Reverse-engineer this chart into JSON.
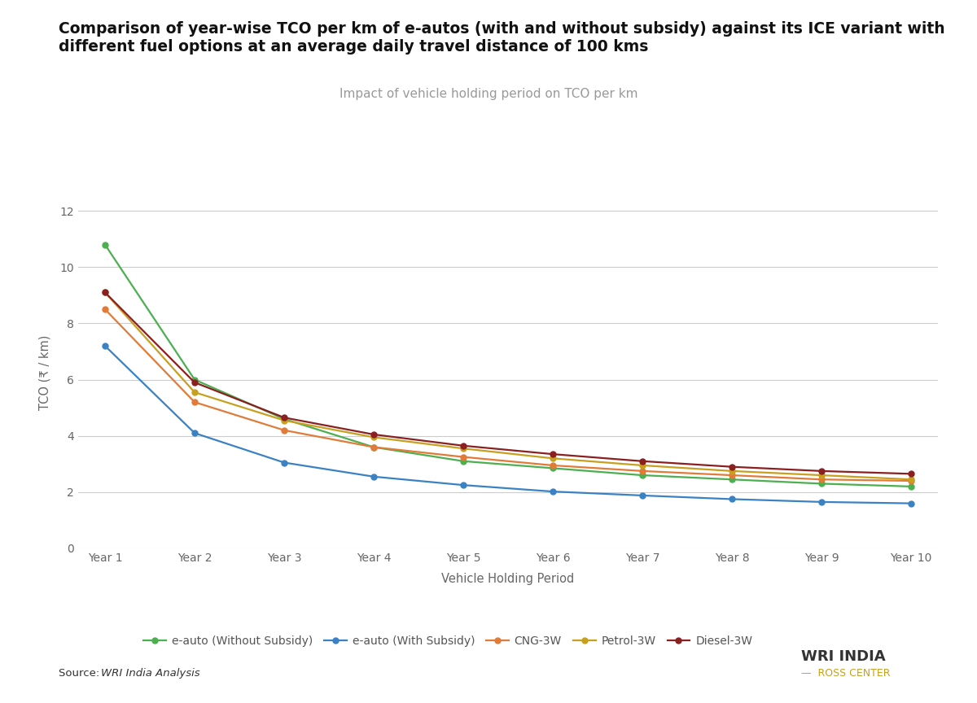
{
  "title_line1": "Comparison of year-wise TCO per km of e-autos (with and without subsidy) against its ICE variant with",
  "title_line2": "different fuel options at an average daily travel distance of 100 kms",
  "subtitle": "Impact of vehicle holding period on TCO per km",
  "xlabel": "Vehicle Holding Period",
  "ylabel": "TCO (₹ / km)",
  "categories": [
    "Year 1",
    "Year 2",
    "Year 3",
    "Year 4",
    "Year 5",
    "Year 6",
    "Year 7",
    "Year 8",
    "Year 9",
    "Year 10"
  ],
  "series_order": [
    "e-auto (Without Subsidy)",
    "e-auto (With Subsidy)",
    "CNG-3W",
    "Petrol-3W",
    "Diesel-3W"
  ],
  "series": {
    "e-auto (Without Subsidy)": {
      "values": [
        10.8,
        6.0,
        4.6,
        3.6,
        3.1,
        2.85,
        2.6,
        2.45,
        2.3,
        2.2
      ],
      "color": "#4CAF50",
      "marker": "o"
    },
    "e-auto (With Subsidy)": {
      "values": [
        7.2,
        4.1,
        3.05,
        2.55,
        2.25,
        2.02,
        1.88,
        1.75,
        1.65,
        1.6
      ],
      "color": "#3B82C4",
      "marker": "o"
    },
    "CNG-3W": {
      "values": [
        8.5,
        5.2,
        4.2,
        3.6,
        3.25,
        2.95,
        2.75,
        2.6,
        2.45,
        2.4
      ],
      "color": "#E07B39",
      "marker": "o"
    },
    "Petrol-3W": {
      "values": [
        9.1,
        5.55,
        4.55,
        3.95,
        3.55,
        3.2,
        2.95,
        2.75,
        2.6,
        2.45
      ],
      "color": "#C8A020",
      "marker": "o"
    },
    "Diesel-3W": {
      "values": [
        9.1,
        5.9,
        4.65,
        4.05,
        3.65,
        3.35,
        3.1,
        2.9,
        2.75,
        2.65
      ],
      "color": "#8B2020",
      "marker": "o"
    }
  },
  "ylim": [
    0,
    12.5
  ],
  "yticks": [
    0,
    2,
    4,
    6,
    8,
    10,
    12
  ],
  "background_color": "#ffffff",
  "grid_color": "#cccccc",
  "title_fontsize": 13.5,
  "subtitle_fontsize": 11,
  "axis_label_fontsize": 10.5,
  "tick_fontsize": 10,
  "legend_fontsize": 10,
  "source_text": "Source: ",
  "source_italic": "WRI India Analysis"
}
